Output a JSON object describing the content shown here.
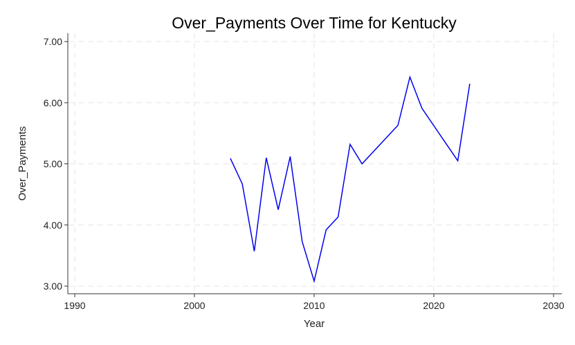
{
  "chart_data": {
    "type": "line",
    "title": "Over_Payments Over Time for Kentucky",
    "xlabel": "Year",
    "ylabel": "Over_Payments",
    "xlim": [
      1990,
      2030
    ],
    "ylim": [
      3.0,
      7.0
    ],
    "x_ticks": [
      1990,
      2000,
      2010,
      2020,
      2030
    ],
    "y_ticks": [
      3.0,
      4.0,
      5.0,
      6.0,
      7.0
    ],
    "y_tick_labels": [
      "3.00",
      "4.00",
      "5.00",
      "6.00",
      "7.00"
    ],
    "grid": true,
    "line_color": "#0000ee",
    "series": [
      {
        "x": [
          2003,
          2004,
          2005,
          2006,
          2007,
          2008,
          2009,
          2010,
          2011,
          2012,
          2013,
          2014,
          2017,
          2018,
          2019,
          2022,
          2023
        ],
        "values": [
          5.09,
          4.67,
          3.57,
          5.1,
          4.25,
          5.12,
          3.73,
          3.08,
          3.92,
          4.13,
          5.32,
          5.0,
          5.63,
          6.42,
          5.91,
          5.05,
          6.31
        ]
      }
    ]
  }
}
